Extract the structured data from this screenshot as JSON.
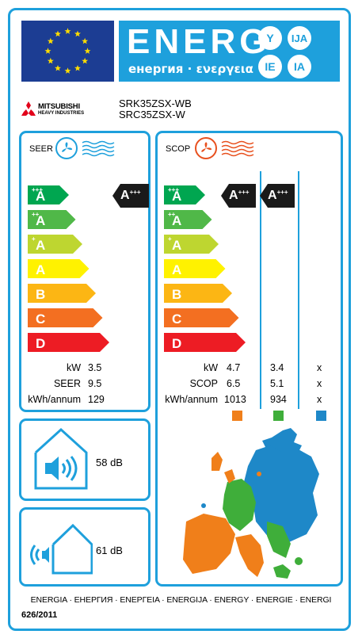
{
  "header": {
    "title": "ENERG",
    "subtitle": "енергия · ενεργεια",
    "bubbles": [
      "Y",
      "IJA",
      "IE",
      "IA"
    ],
    "colors": {
      "blue": "#1ea0dc",
      "eu_blue": "#1c3d93",
      "eu_star": "#ffdd00"
    }
  },
  "brand": {
    "name": "MITSUBISHI",
    "sub": "HEAVY INDUSTRIES",
    "logo_color": "#e2001a"
  },
  "model": {
    "indoor": "SRK35ZSX-WB",
    "outdoor": "SRC35ZSX-W"
  },
  "seer": {
    "title": "SEER",
    "rating": {
      "base": "A",
      "sup": "+++"
    },
    "rows": [
      {
        "label": "kW",
        "value": "3.5"
      },
      {
        "label": "SEER",
        "value": "9.5"
      },
      {
        "label": "kWh/annum",
        "value": "129"
      }
    ]
  },
  "scop": {
    "title": "SCOP",
    "ratings": [
      {
        "base": "A",
        "sup": "+++"
      },
      {
        "base": "A",
        "sup": "+++"
      }
    ],
    "labels": [
      "kW",
      "SCOP",
      "kWh/annum"
    ],
    "columns": [
      {
        "values": [
          "4.7",
          "6.5",
          "1013"
        ],
        "color": "#f07f1a"
      },
      {
        "values": [
          "3.4",
          "5.1",
          "934"
        ],
        "color": "#3fae3a"
      },
      {
        "values": [
          "x",
          "x",
          "x"
        ],
        "color": "#1e88c8"
      }
    ]
  },
  "classes": [
    {
      "base": "A",
      "sup": "+++",
      "color": "#00a650"
    },
    {
      "base": "A",
      "sup": "++",
      "color": "#50b848"
    },
    {
      "base": "A",
      "sup": "+",
      "color": "#bed630"
    },
    {
      "base": "A",
      "sup": "",
      "color": "#fff200"
    },
    {
      "base": "B",
      "sup": "",
      "color": "#fcb614"
    },
    {
      "base": "C",
      "sup": "",
      "color": "#f36f21"
    },
    {
      "base": "D",
      "sup": "",
      "color": "#ed1c24"
    }
  ],
  "noise": {
    "indoor": "58 dB",
    "outdoor": "61 dB"
  },
  "footer": {
    "text": "ENERGIA · ЕНЕРГИЯ · ΕΝΕΡΓΕΙΑ · ENERGIJA · ENERGY · ENERGIE · ENERGI",
    "regulation": "626/2011"
  }
}
